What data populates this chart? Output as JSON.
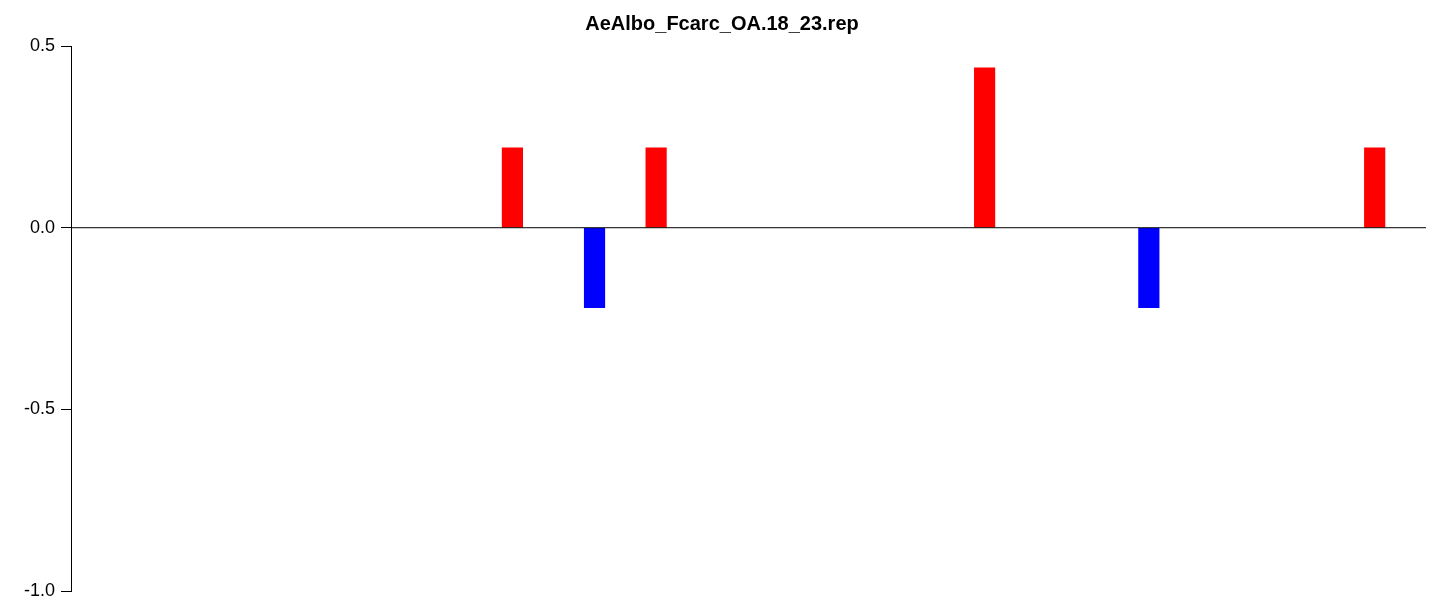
{
  "chart_data": {
    "type": "bar",
    "title": "AeAlbo_Fcarc_OA.18_23.rep",
    "categories": [
      null,
      null,
      null,
      null,
      null,
      null,
      null,
      null,
      null,
      null,
      null,
      null,
      null,
      null,
      null,
      null,
      null,
      null,
      null,
      null,
      null,
      null,
      null,
      null,
      null,
      null,
      null,
      null,
      null,
      null,
      null,
      null,
      null,
      null,
      null,
      null,
      null,
      null,
      null,
      null,
      null,
      null,
      null,
      null,
      null,
      null,
      null,
      null,
      null,
      null,
      null,
      null,
      null,
      null,
      null,
      null,
      null,
      null,
      null,
      null,
      null,
      null,
      null,
      null,
      null,
      null
    ],
    "values": [
      null,
      null,
      null,
      null,
      null,
      null,
      null,
      null,
      null,
      null,
      null,
      null,
      null,
      null,
      null,
      null,
      null,
      null,
      null,
      null,
      null,
      0.22,
      null,
      null,
      null,
      -0.22,
      null,
      null,
      0.22,
      null,
      null,
      null,
      null,
      null,
      null,
      null,
      null,
      null,
      null,
      null,
      null,
      null,
      null,
      null,
      0.44,
      null,
      null,
      null,
      null,
      null,
      null,
      null,
      -0.22,
      null,
      null,
      null,
      null,
      null,
      null,
      null,
      null,
      null,
      null,
      0.22,
      null,
      null
    ],
    "colors": [
      "#ff0000",
      "#ff0000",
      "#ff0000",
      "#ff0000",
      "#ff0000",
      "#ff0000",
      "#ff0000",
      "#ff0000",
      "#ff0000",
      "#ff0000",
      "#ff0000",
      "#ff0000",
      "#ff0000",
      "#ff0000",
      "#ff0000",
      "#ff0000",
      "#ff0000",
      "#ff0000",
      "#ff0000",
      "#ff0000",
      "#ff0000",
      "#ff0000",
      "#ff0000",
      "#ff0000",
      "#ff0000",
      "#0000ff",
      "#ff0000",
      "#ff0000",
      "#ff0000",
      "#ff0000",
      "#ff0000",
      "#ff0000",
      "#ff0000",
      "#ff0000",
      "#ff0000",
      "#ff0000",
      "#ff0000",
      "#ff0000",
      "#ff0000",
      "#ff0000",
      "#ff0000",
      "#ff0000",
      "#ff0000",
      "#ff0000",
      "#ff0000",
      "#ff0000",
      "#ff0000",
      "#ff0000",
      "#ff0000",
      "#ff0000",
      "#ff0000",
      "#ff0000",
      "#0000ff",
      "#ff0000",
      "#ff0000",
      "#ff0000",
      "#ff0000",
      "#ff0000",
      "#ff0000",
      "#ff0000",
      "#ff0000",
      "#ff0000",
      "#ff0000",
      "#ff0000",
      "#ff0000",
      "#ff0000"
    ],
    "ylim": [
      -1,
      0.5
    ],
    "yticks": [
      {
        "value": -1,
        "label": "-1.0"
      },
      {
        "value": -0.5,
        "label": "-0.5"
      },
      {
        "value": 0,
        "label": "0.0"
      },
      {
        "value": 0.5,
        "label": "0.5"
      }
    ],
    "ref_lines": [
      {
        "axis": "y",
        "value": 0,
        "color": "#000000"
      }
    ],
    "grid": false,
    "legend": false
  }
}
